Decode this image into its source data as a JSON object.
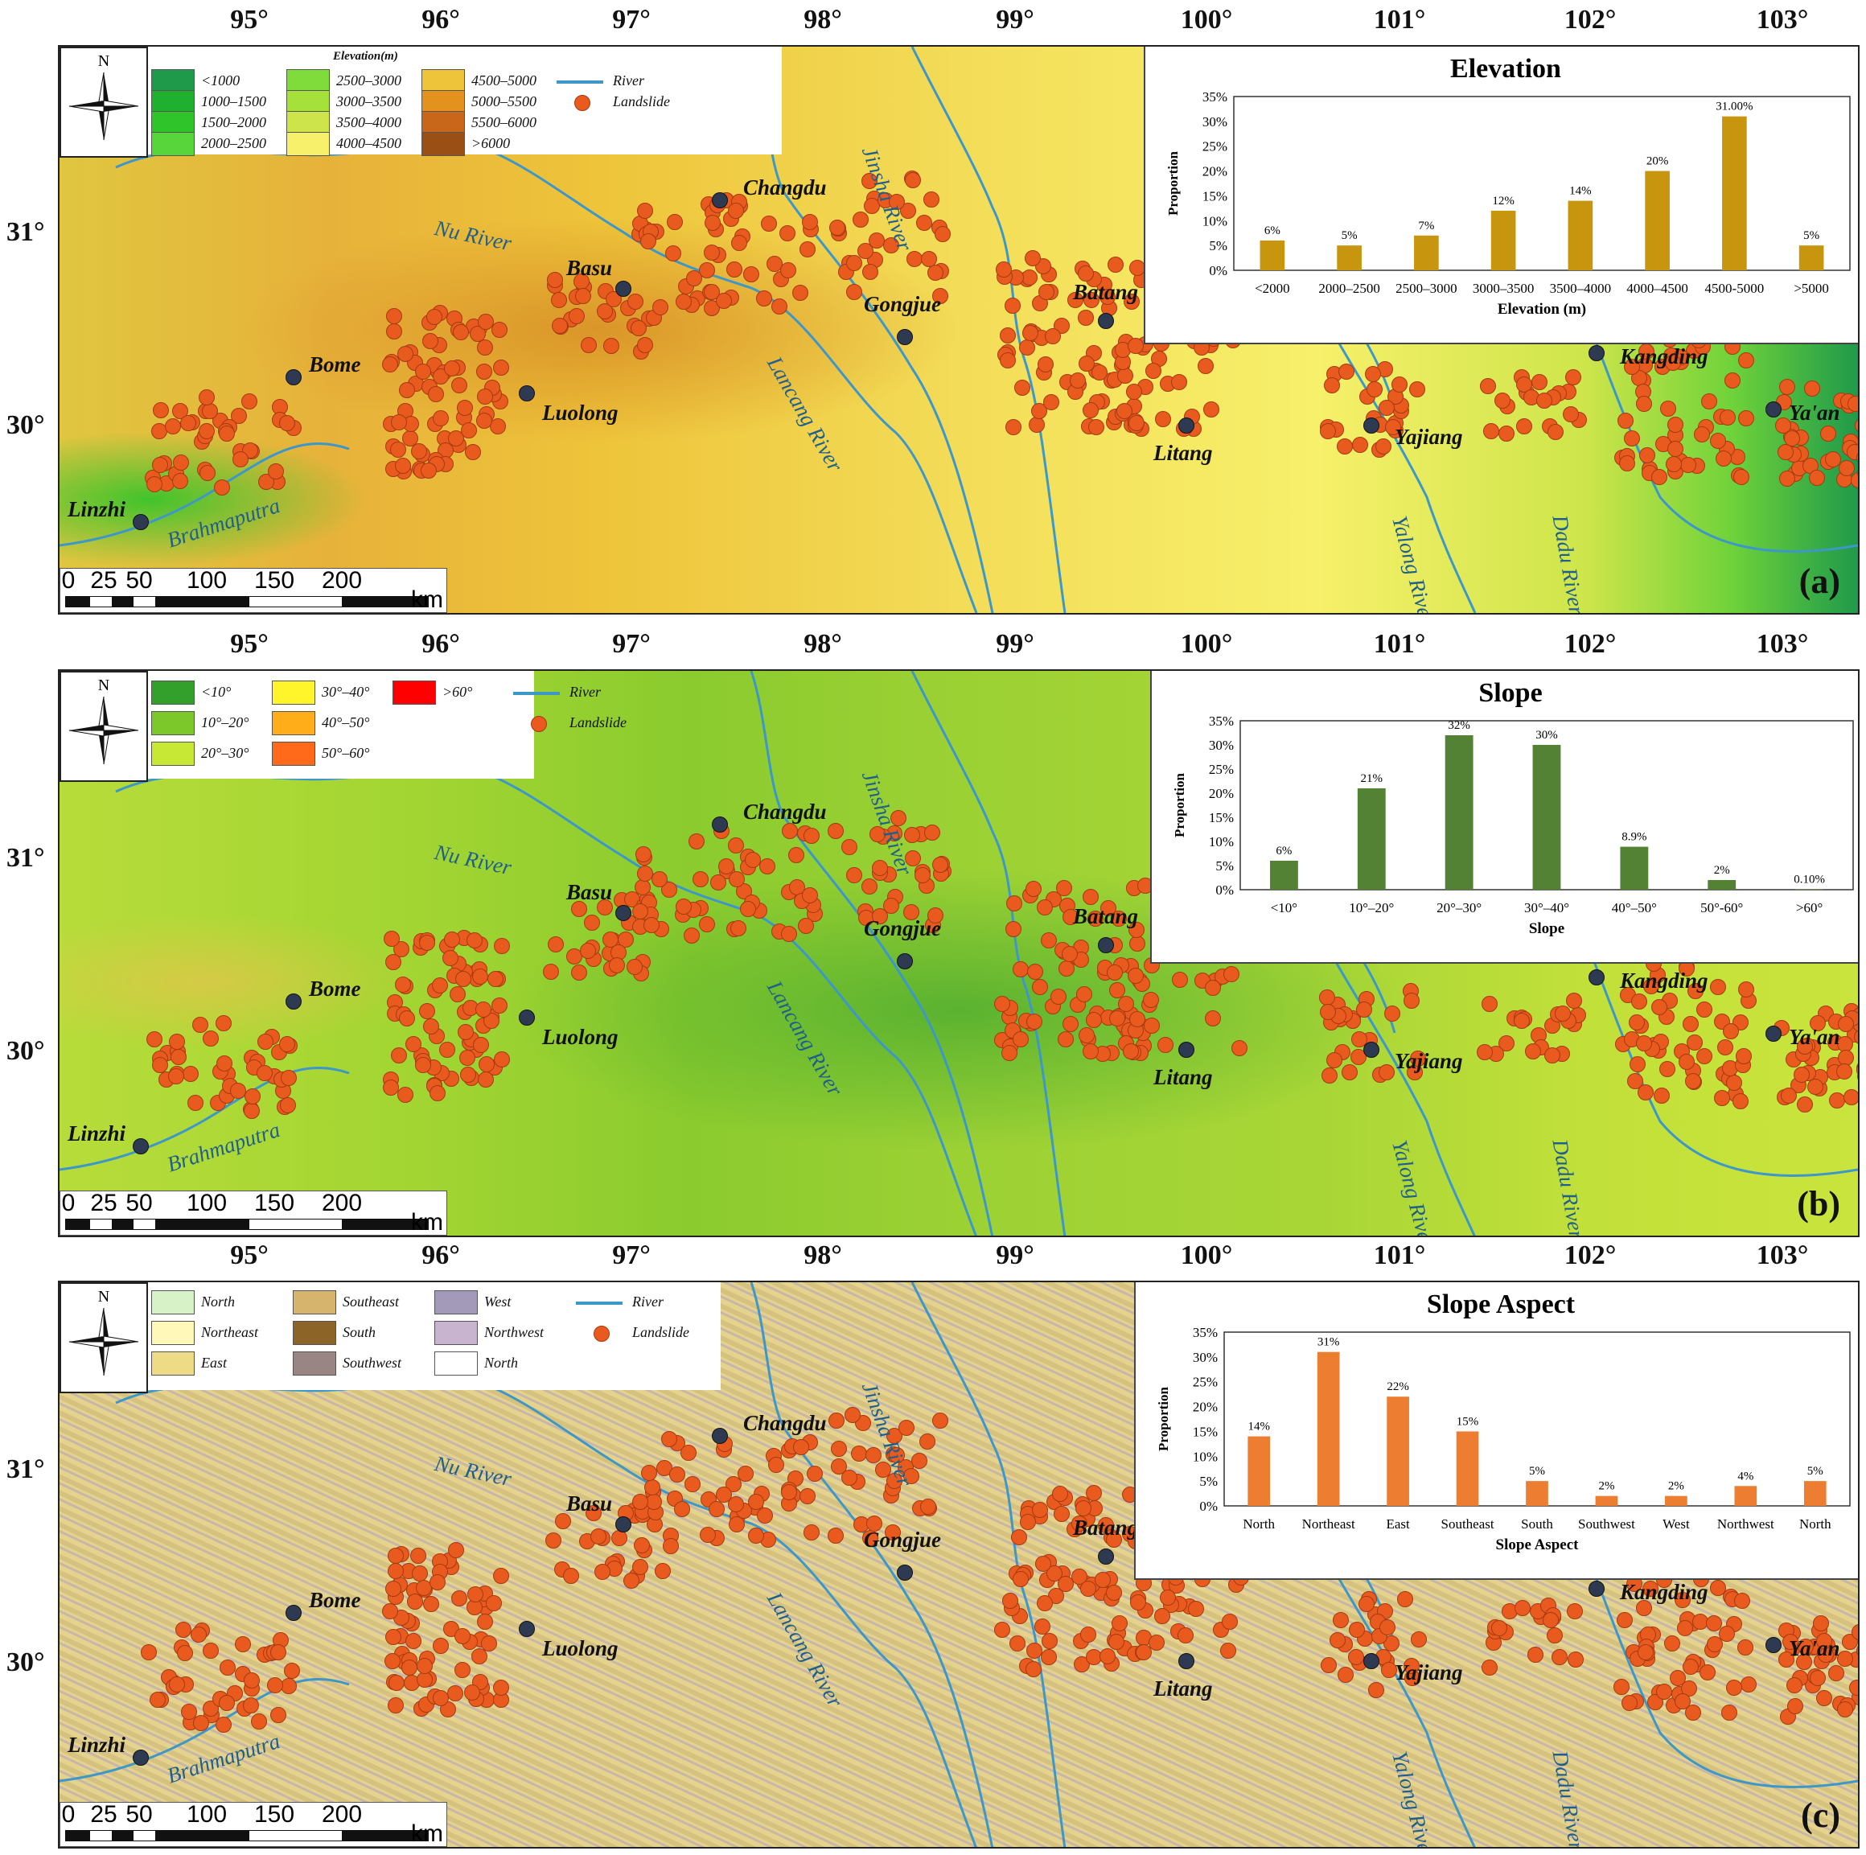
{
  "longitude_labels": [
    "95°",
    "96°",
    "97°",
    "98°",
    "99°",
    "100°",
    "101°",
    "102°",
    "103°"
  ],
  "latitude_labels": [
    "31°",
    "30°"
  ],
  "places": [
    "Changdu",
    "Basu",
    "Gongjue",
    "Batang",
    "Bome",
    "Luolong",
    "Litang",
    "Yajiang",
    "Kangding",
    "Ya'an",
    "Linzhi"
  ],
  "rivers": [
    "Nu River",
    "Jinsha River",
    "Lancang River",
    "Yalong River",
    "Dadu River",
    "Brahmaputra"
  ],
  "scale": {
    "ticks": [
      "0",
      "25",
      "50",
      "100",
      "150",
      "200"
    ],
    "unit": "km"
  },
  "colors": {
    "river": "#3d97c9",
    "landslide": "#e95a1f",
    "city": "#2e3a52",
    "elevation_bar": "#c8950f",
    "slope_bar": "#548235",
    "aspect_bar": "#ed7d31"
  },
  "panel_a": {
    "tag": "(a)",
    "legend_title": "Elevation(m)",
    "legend": [
      {
        "label": "<1000",
        "color": "#1f9a4a"
      },
      {
        "label": "1000–1500",
        "color": "#1fb030"
      },
      {
        "label": "1500–2000",
        "color": "#2fc42a"
      },
      {
        "label": "2000–2500",
        "color": "#58d53a"
      },
      {
        "label": "2500–3000",
        "color": "#7fdc3a"
      },
      {
        "label": "3000–3500",
        "color": "#a6e03a"
      },
      {
        "label": "3500–4000",
        "color": "#cde54a"
      },
      {
        "label": "4000–4500",
        "color": "#f7f06a"
      },
      {
        "label": "4500–5000",
        "color": "#eec43a"
      },
      {
        "label": "5000–5500",
        "color": "#e3921e"
      },
      {
        "label": "5500–6000",
        "color": "#c8661a"
      },
      {
        "label": ">6000",
        "color": "#9a5014"
      }
    ],
    "legend_river": "River",
    "legend_landslide": "Landslide"
  },
  "panel_b": {
    "tag": "(b)",
    "legend": [
      {
        "label": "<10°",
        "color": "#33a02c"
      },
      {
        "label": "10°–20°",
        "color": "#7cc72a"
      },
      {
        "label": "20°–30°",
        "color": "#c8e836"
      },
      {
        "label": "30°–40°",
        "color": "#fff52a"
      },
      {
        "label": "40°–50°",
        "color": "#ffae1a"
      },
      {
        "label": "50°–60°",
        "color": "#ff6a1a"
      },
      {
        "label": ">60°",
        "color": "#ff0000"
      }
    ],
    "legend_river": "River",
    "legend_landslide": "Landslide"
  },
  "panel_c": {
    "tag": "(c)",
    "legend": [
      {
        "label": "North",
        "color": "#d8f2c8"
      },
      {
        "label": "Northeast",
        "color": "#fff8b8"
      },
      {
        "label": "East",
        "color": "#eedb86"
      },
      {
        "label": "Southeast",
        "color": "#d7b46e"
      },
      {
        "label": "South",
        "color": "#8c6428"
      },
      {
        "label": "Southwest",
        "color": "#9a8585"
      },
      {
        "label": "West",
        "color": "#a29ab8"
      },
      {
        "label": "Northwest",
        "color": "#c9b4cf"
      },
      {
        "label": "North",
        "color": "#ffffff"
      }
    ],
    "legend_river": "River",
    "legend_landslide": "Landslide"
  },
  "chart_data": [
    {
      "type": "bar",
      "title": "Elevation",
      "xlabel": "Elevation (m)",
      "ylabel": "Proportion",
      "categories": [
        "<2000",
        "2000–2500",
        "2500–3000",
        "3000–3500",
        "3500–4000",
        "4000–4500",
        "4500-5000",
        ">5000"
      ],
      "values": [
        6,
        5,
        7,
        12,
        14,
        20,
        31,
        5
      ],
      "labels": [
        "6%",
        "5%",
        "7%",
        "12%",
        "14%",
        "20%",
        "31.00%",
        "5%"
      ],
      "yticks": [
        "0%",
        "5%",
        "10%",
        "15%",
        "20%",
        "25%",
        "30%",
        "35%"
      ],
      "ylim": [
        0,
        35
      ]
    },
    {
      "type": "bar",
      "title": "Slope",
      "xlabel": "Slope",
      "ylabel": "Proportion",
      "categories": [
        "<10°",
        "10°–20°",
        "20°–30°",
        "30°–40°",
        "40°–50°",
        "50°-60°",
        ">60°"
      ],
      "values": [
        6,
        21,
        32,
        30,
        8.9,
        2,
        0.1
      ],
      "labels": [
        "6%",
        "21%",
        "32%",
        "30%",
        "8.9%",
        "2%",
        "0.10%"
      ],
      "yticks": [
        "0%",
        "5%",
        "10%",
        "15%",
        "20%",
        "25%",
        "30%",
        "35%"
      ],
      "ylim": [
        0,
        35
      ]
    },
    {
      "type": "bar",
      "title": "Slope Aspect",
      "xlabel": "Slope Aspect",
      "ylabel": "Proportion",
      "categories": [
        "North",
        "Northeast",
        "East",
        "Southeast",
        "South",
        "Southwest",
        "West",
        "Northwest",
        "North"
      ],
      "values": [
        14,
        31,
        22,
        15,
        5,
        2,
        2,
        4,
        5
      ],
      "labels": [
        "14%",
        "31%",
        "22%",
        "15%",
        "5%",
        "2%",
        "2%",
        "4%",
        "5%"
      ],
      "yticks": [
        "0%",
        "5%",
        "10%",
        "15%",
        "20%",
        "25%",
        "30%",
        "35%"
      ],
      "ylim": [
        0,
        35
      ]
    }
  ]
}
